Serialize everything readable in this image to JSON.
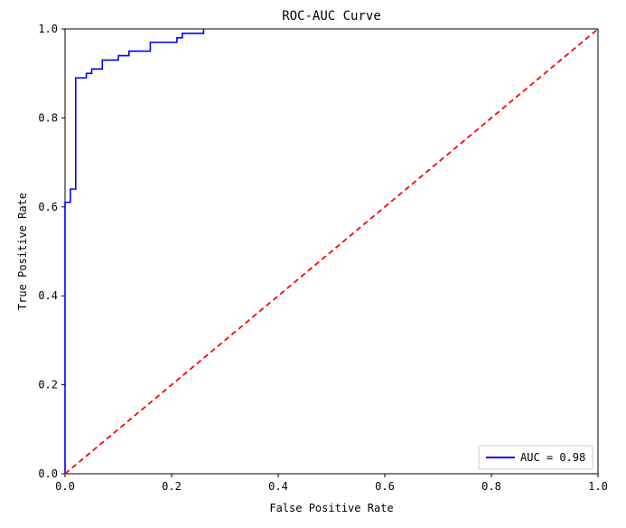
{
  "chart_data": {
    "type": "line",
    "title": "ROC-AUC Curve",
    "xlabel": "False Positive Rate",
    "ylabel": "True Positive Rate",
    "xlim": [
      0.0,
      1.0
    ],
    "ylim": [
      0.0,
      1.0
    ],
    "x_ticks": [
      0.0,
      0.2,
      0.4,
      0.6,
      0.8,
      1.0
    ],
    "y_ticks": [
      0.0,
      0.2,
      0.4,
      0.6,
      0.8,
      1.0
    ],
    "x_tick_labels": [
      "0.0",
      "0.2",
      "0.4",
      "0.6",
      "0.8",
      "1.0"
    ],
    "y_tick_labels": [
      "0.0",
      "0.2",
      "0.4",
      "0.6",
      "0.8",
      "1.0"
    ],
    "grid": false,
    "legend_position": "lower-right",
    "series": [
      {
        "name": "AUC = 0.98",
        "color": "#0000ff",
        "style": "solid",
        "x": [
          0.0,
          0.0,
          0.0,
          0.01,
          0.01,
          0.02,
          0.02,
          0.04,
          0.04,
          0.05,
          0.05,
          0.07,
          0.07,
          0.1,
          0.1,
          0.12,
          0.12,
          0.16,
          0.16,
          0.21,
          0.21,
          0.22,
          0.22,
          0.26,
          0.26
        ],
        "y": [
          0.0,
          0.0,
          0.61,
          0.61,
          0.64,
          0.64,
          0.89,
          0.89,
          0.9,
          0.9,
          0.91,
          0.91,
          0.93,
          0.93,
          0.94,
          0.94,
          0.95,
          0.95,
          0.97,
          0.97,
          0.98,
          0.98,
          0.99,
          0.99,
          1.0
        ]
      },
      {
        "color": "#ff0000",
        "style": "dashed",
        "x": [
          0.0,
          1.0
        ],
        "y": [
          0.0,
          1.0
        ]
      }
    ]
  }
}
